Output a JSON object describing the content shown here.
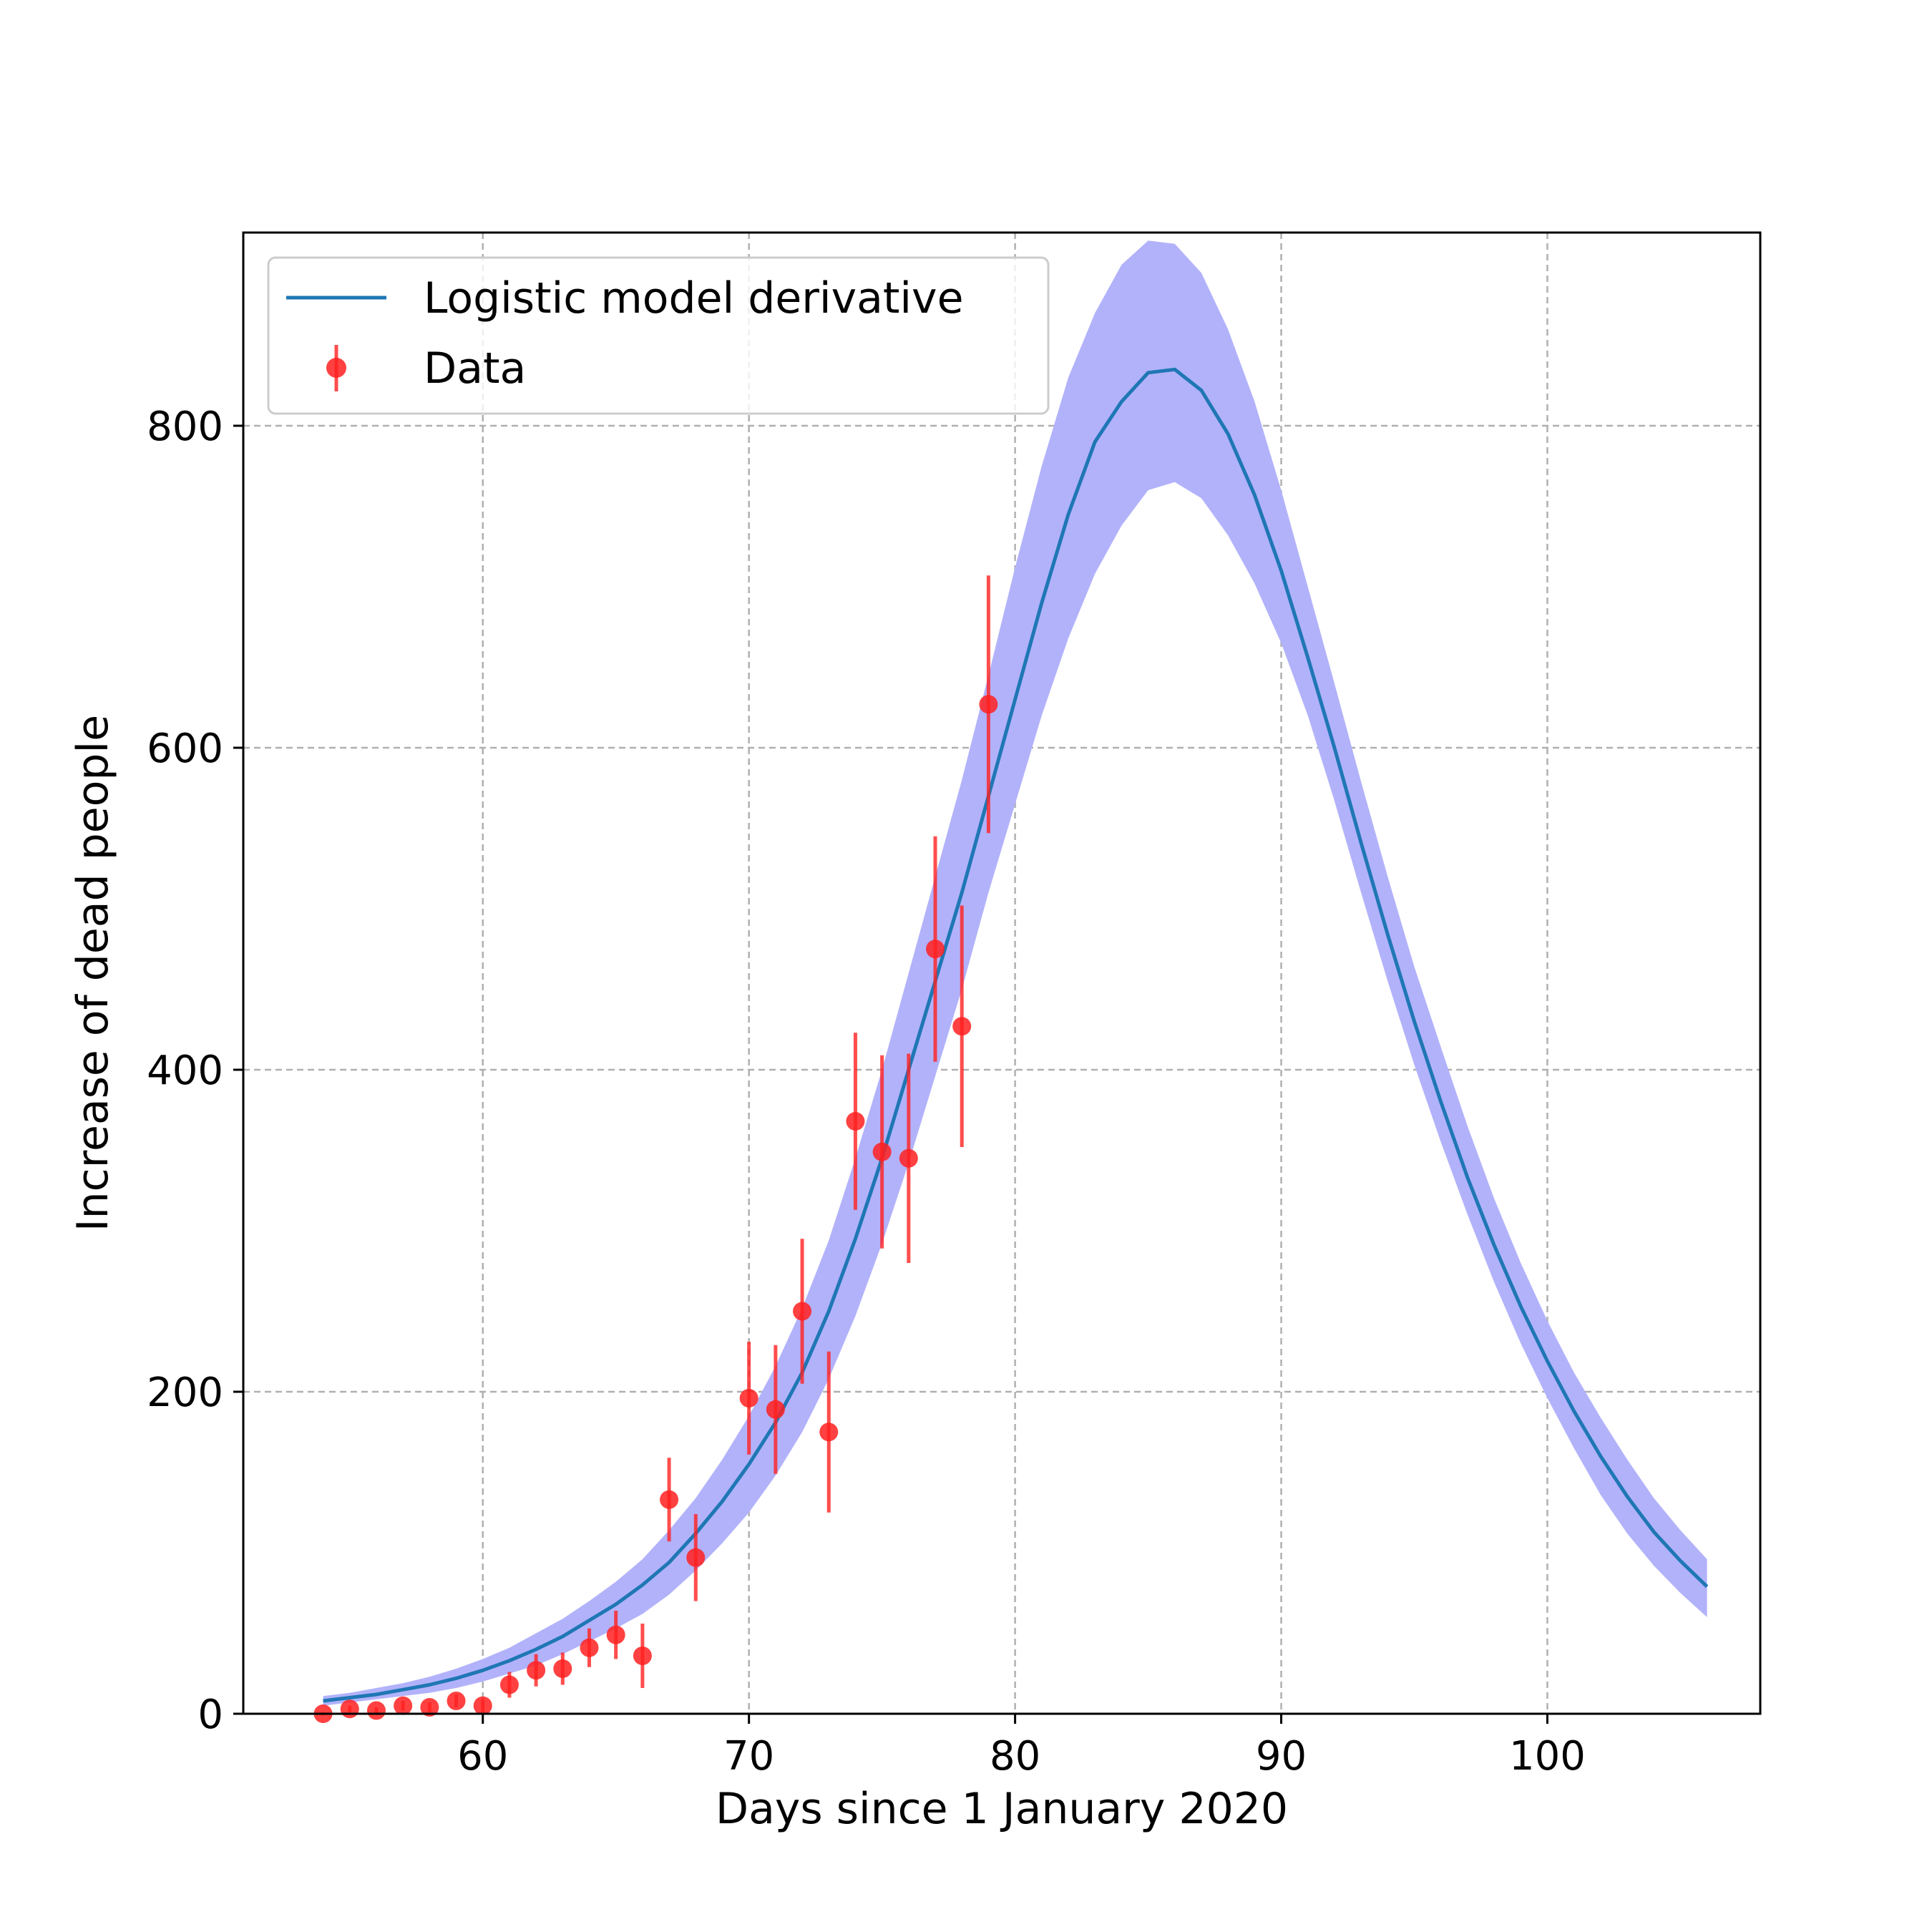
{
  "chart_data": {
    "type": "line",
    "title": "",
    "xlabel": "Days since 1 January 2020",
    "ylabel": "Increase of dead people",
    "xlim": [
      51,
      108
    ],
    "ylim": [
      0,
      920
    ],
    "x_ticks": [
      60,
      70,
      80,
      90,
      100
    ],
    "y_ticks": [
      0,
      200,
      400,
      600,
      800
    ],
    "grid": true,
    "legend_position": "top-left",
    "colors": {
      "model_line": "#1f77b4",
      "band_fill": "#b2b2fb",
      "data_points": "#ff2020",
      "grid": "#b0b0b0"
    },
    "series": [
      {
        "name": "Logistic model derivative",
        "kind": "line",
        "x": [
          54,
          55,
          56,
          57,
          58,
          59,
          60,
          61,
          62,
          63,
          64,
          65,
          66,
          67,
          68,
          69,
          70,
          71,
          72,
          73,
          74,
          75,
          76,
          77,
          78,
          79,
          80,
          81,
          82,
          83,
          84,
          85,
          86,
          87,
          88,
          89,
          90,
          91,
          92,
          93,
          94,
          95,
          96,
          97,
          98,
          99,
          100,
          101,
          102,
          103,
          104,
          105,
          106
        ],
        "y": [
          8,
          10,
          12,
          15,
          18,
          22,
          27,
          33,
          40,
          48,
          58,
          68,
          80,
          94,
          112,
          132,
          155,
          181,
          212,
          250,
          295,
          345,
          400,
          455,
          510,
          570,
          630,
          690,
          745,
          790,
          815,
          833,
          835,
          822,
          795,
          757,
          710,
          656,
          600,
          541,
          484,
          430,
          380,
          333,
          291,
          253,
          219,
          188,
          160,
          135,
          113,
          95,
          79
        ],
        "band_lower": [
          5,
          7,
          9,
          11,
          13,
          16,
          20,
          25,
          30,
          37,
          45,
          53,
          62,
          74,
          89,
          106,
          125,
          148,
          175,
          208,
          247,
          292,
          342,
          396,
          450,
          510,
          565,
          620,
          668,
          708,
          738,
          760,
          765,
          755,
          732,
          702,
          665,
          620,
          567,
          510,
          455,
          403,
          355,
          310,
          268,
          230,
          196,
          165,
          136,
          112,
          92,
          75,
          60
        ],
        "band_upper": [
          11,
          13,
          16,
          19,
          23,
          28,
          34,
          41,
          50,
          59,
          70,
          82,
          96,
          114,
          134,
          158,
          185,
          216,
          252,
          294,
          345,
          400,
          460,
          520,
          580,
          645,
          712,
          775,
          830,
          870,
          900,
          915,
          913,
          895,
          860,
          815,
          760,
          700,
          640,
          579,
          520,
          464,
          414,
          365,
          320,
          280,
          244,
          212,
          184,
          158,
          134,
          114,
          96
        ]
      },
      {
        "name": "Data",
        "kind": "errorbar",
        "x": [
          54,
          55,
          56,
          57,
          58,
          59,
          60,
          61,
          62,
          63,
          64,
          65,
          66,
          67,
          68,
          70,
          71,
          72,
          73,
          74,
          75,
          76,
          77,
          78,
          79
        ],
        "y": [
          0,
          3,
          2,
          5,
          4,
          8,
          5,
          18,
          27,
          28,
          41,
          49,
          36,
          133,
          97,
          196,
          189,
          250,
          175,
          368,
          349,
          345,
          475,
          427,
          627
        ],
        "yerr": [
          1,
          2,
          2,
          3,
          3,
          4,
          4,
          8,
          10,
          10,
          12,
          15,
          20,
          26,
          27,
          35,
          40,
          45,
          50,
          55,
          60,
          65,
          70,
          75,
          80
        ]
      }
    ]
  }
}
